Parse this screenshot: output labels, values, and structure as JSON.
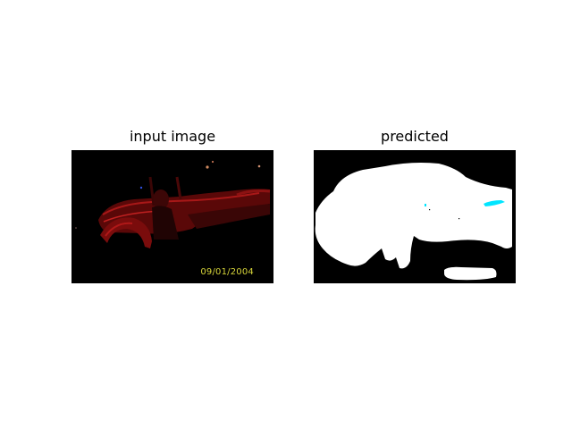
{
  "panels": {
    "left": {
      "title": "input image",
      "date_stamp": "09/01/2004"
    },
    "right": {
      "title": "predicted"
    }
  },
  "colors": {
    "background": "#ffffff",
    "image_background": "#000000",
    "car_red": "#8a1010",
    "mask_fill": "#ffffff",
    "mask_highlight": "#00e5ff",
    "date_stamp": "#d8d63a"
  }
}
